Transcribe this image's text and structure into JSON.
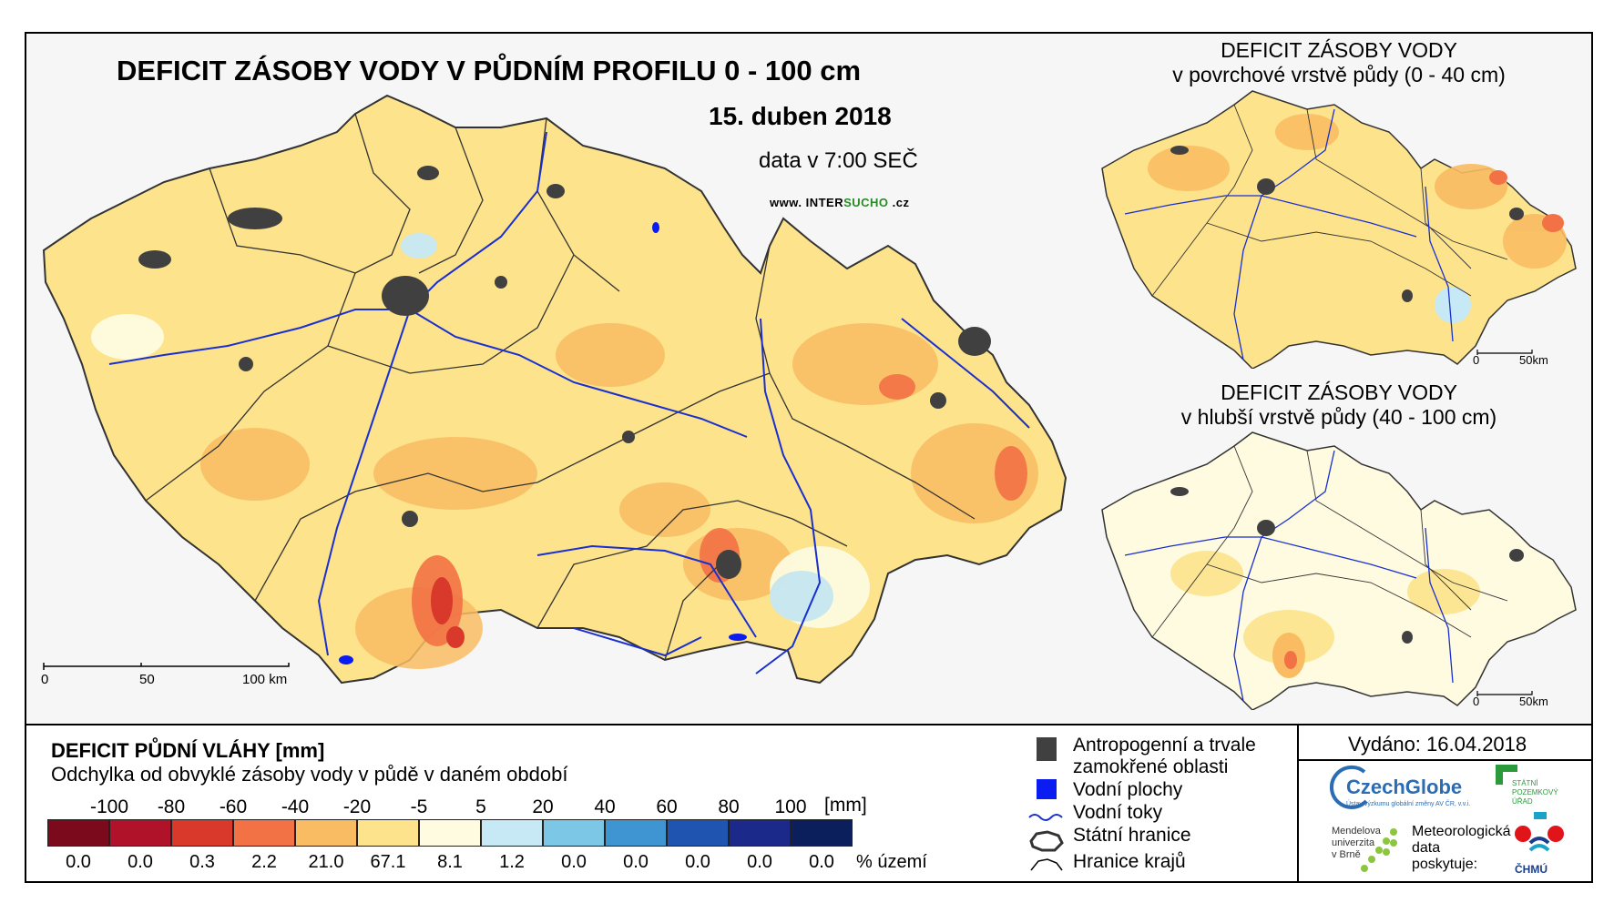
{
  "main_map": {
    "title": "DEFICIT ZÁSOBY VODY V PŮDNÍM PROFILU 0 - 100 cm",
    "date": "15. duben 2018",
    "time_note": "data v 7:00 SEČ",
    "website_prefix": "www. INTER",
    "website_hl": "SUCHO",
    "website_suffix": " .cz",
    "scale": {
      "zero": "0",
      "mid": "50",
      "max": "100 km"
    }
  },
  "inset_surface": {
    "title_line1": "DEFICIT ZÁSOBY VODY",
    "title_line2": "v povrchové vrstvě půdy (0 - 40 cm)",
    "scale": {
      "zero": "0",
      "max": "50km"
    }
  },
  "inset_deep": {
    "title_line1": "DEFICIT ZÁSOBY VODY",
    "title_line2": "v hlubší vrstvě půdy (40 - 100 cm)",
    "scale": {
      "zero": "0",
      "max": "50km"
    }
  },
  "legend": {
    "title": "DEFICIT PŮDNÍ VLÁHY [mm]",
    "subtitle": "Odchylka od obvyklé zásoby vody v půdě v daném období",
    "thresholds": [
      "-100",
      "-80",
      "-60",
      "-40",
      "-20",
      "-5",
      "5",
      "20",
      "40",
      "60",
      "80",
      "100"
    ],
    "unit_mm": "[mm]",
    "classes": [
      {
        "color": "#7a0a1c",
        "pct": "0.0"
      },
      {
        "color": "#b0122a",
        "pct": "0.0"
      },
      {
        "color": "#d8392b",
        "pct": "0.3"
      },
      {
        "color": "#f27245",
        "pct": "2.2"
      },
      {
        "color": "#f9bc62",
        "pct": "21.0"
      },
      {
        "color": "#fce38c",
        "pct": "67.1"
      },
      {
        "color": "#fefbe0",
        "pct": "8.1"
      },
      {
        "color": "#c7e8f5",
        "pct": "1.2"
      },
      {
        "color": "#7cc6e6",
        "pct": "0.0"
      },
      {
        "color": "#3f95d2",
        "pct": "0.0"
      },
      {
        "color": "#1f55b0",
        "pct": "0.0"
      },
      {
        "color": "#1b2a8a",
        "pct": "0.0"
      },
      {
        "color": "#0b1f5c",
        "pct": "0.0"
      }
    ],
    "unit_pct": "% území"
  },
  "symbols": {
    "anthropogenic": [
      "Antropogenní a trvale",
      "zamokřené oblasti"
    ],
    "water_bodies": "Vodní plochy",
    "rivers": "Vodní toky",
    "state_border": "Státní hranice",
    "region_border": "Hranice krajů"
  },
  "issued": "Vydáno: 16.04.2018",
  "logos": {
    "czechglobe": "CzechGlobe",
    "czechglobe_sub": "Ústav výzkumu globální změny AV ČR, v.v.i.",
    "spu": [
      "STÁTNÍ",
      "POZEMKOVÝ",
      "ÚŘAD"
    ],
    "mendelu": [
      "Mendelova",
      "univerzita",
      "v Brně"
    ],
    "meteo": [
      "Meteorologická",
      "data",
      "poskytuje:"
    ],
    "chmu": "ČHMÚ"
  },
  "colors": {
    "river": "#1a2fd0",
    "anthropogenic": "#404040",
    "water_body": "#0a1cf0",
    "border": "#333333"
  }
}
